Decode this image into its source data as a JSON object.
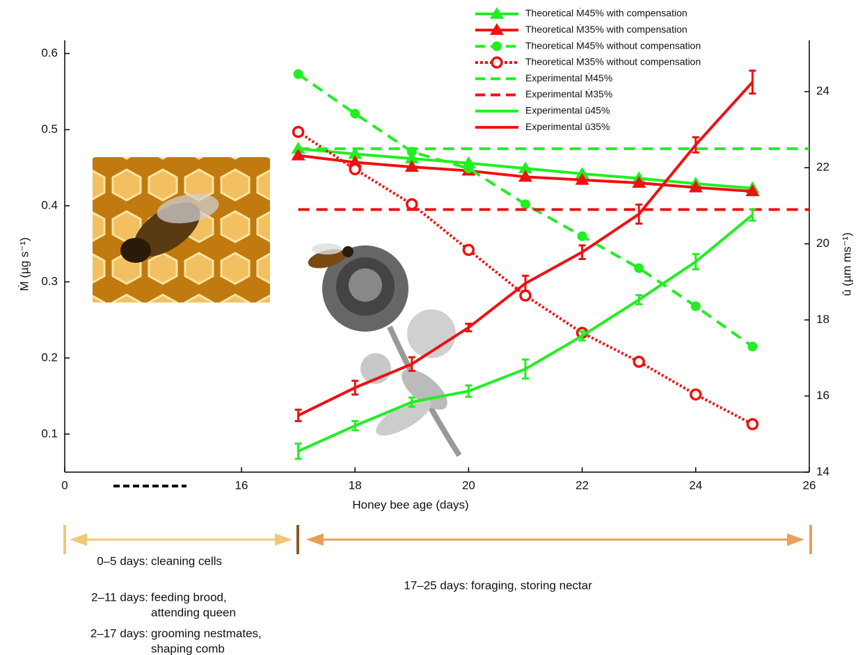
{
  "chart_data": {
    "type": "line",
    "xlabel": "Honey bee age (days)",
    "ylabel": "Ṁ (µg s⁻¹)",
    "y2label": "ū (µm ms⁻¹)",
    "x": [
      17,
      18,
      19,
      20,
      21,
      22,
      23,
      24,
      25
    ],
    "xlim": [
      0,
      26
    ],
    "x_break": [
      0,
      16
    ],
    "xticks": [
      0,
      16,
      18,
      20,
      22,
      24,
      26
    ],
    "ylim": [
      0.05,
      0.6
    ],
    "yticks": [
      0.1,
      0.2,
      0.3,
      0.4,
      0.5,
      0.6
    ],
    "y2lim": [
      14,
      25
    ],
    "y2ticks": [
      14,
      16,
      18,
      20,
      22,
      24
    ],
    "legend": "top-right",
    "series": [
      {
        "name": "Theoretical Ṁ45% with compensation",
        "color": "#22ee22",
        "line_style": "solid",
        "marker": "triangle",
        "values": [
          0.475,
          0.468,
          0.462,
          0.456,
          0.449,
          0.442,
          0.436,
          0.429,
          0.423
        ]
      },
      {
        "name": "Theoretical Ṁ35% with compensation",
        "color": "#ee1111",
        "line_style": "solid",
        "marker": "triangle",
        "values": [
          0.466,
          0.457,
          0.451,
          0.446,
          0.438,
          0.434,
          0.43,
          0.424,
          0.419
        ]
      },
      {
        "name": "Theoretical Ṁ45% without compensation",
        "color": "#22ee22",
        "line_style": "dashed",
        "marker": "circle",
        "values": [
          0.573,
          0.521,
          0.471,
          0.449,
          0.402,
          0.36,
          0.318,
          0.268,
          0.215
        ]
      },
      {
        "name": "Theoretical Ṁ35% without compensation",
        "color": "#ee1111",
        "line_style": "dotted",
        "marker": "open-circle",
        "values": [
          0.497,
          0.448,
          0.402,
          0.342,
          0.282,
          0.233,
          0.195,
          0.152,
          0.113
        ]
      },
      {
        "name": "Experimental Ṁ45%",
        "color": "#22ee22",
        "line_style": "dashed",
        "marker": "none",
        "x": [
          17,
          26
        ],
        "values": [
          0.475,
          0.475
        ]
      },
      {
        "name": "Experimental Ṁ35%",
        "color": "#ee1111",
        "line_style": "dashed",
        "marker": "none",
        "x": [
          17,
          26
        ],
        "values": [
          0.395,
          0.395
        ]
      },
      {
        "name": "Experimental ū45%",
        "color": "#22ee22",
        "line_style": "solid",
        "marker": "none",
        "axis": "y2",
        "values": [
          14.55,
          15.22,
          15.84,
          16.13,
          16.71,
          17.58,
          18.53,
          19.53,
          20.76
        ],
        "errors": [
          0.2,
          0.12,
          0.12,
          0.15,
          0.25,
          0.12,
          0.12,
          0.2,
          0.15
        ]
      },
      {
        "name": "Experimental ū35%",
        "color": "#ee1111",
        "line_style": "solid",
        "marker": "none",
        "axis": "y2",
        "values": [
          15.49,
          16.22,
          16.84,
          17.8,
          18.96,
          19.78,
          20.78,
          22.6,
          24.25
        ],
        "errors": [
          0.15,
          0.18,
          0.18,
          0.1,
          0.2,
          0.18,
          0.25,
          0.2,
          0.3
        ]
      }
    ],
    "annotations": [
      {
        "label": "0–5 days:",
        "lines": [
          "cleaning cells"
        ]
      },
      {
        "label": "2–11 days:",
        "lines": [
          "feeding brood,",
          "attending queen"
        ]
      },
      {
        "label": "2–17 days:",
        "lines": [
          "grooming nestmates,",
          "shaping comb"
        ]
      },
      {
        "label": "17–25 days:",
        "lines": [
          "foraging, storing nectar"
        ]
      }
    ]
  }
}
